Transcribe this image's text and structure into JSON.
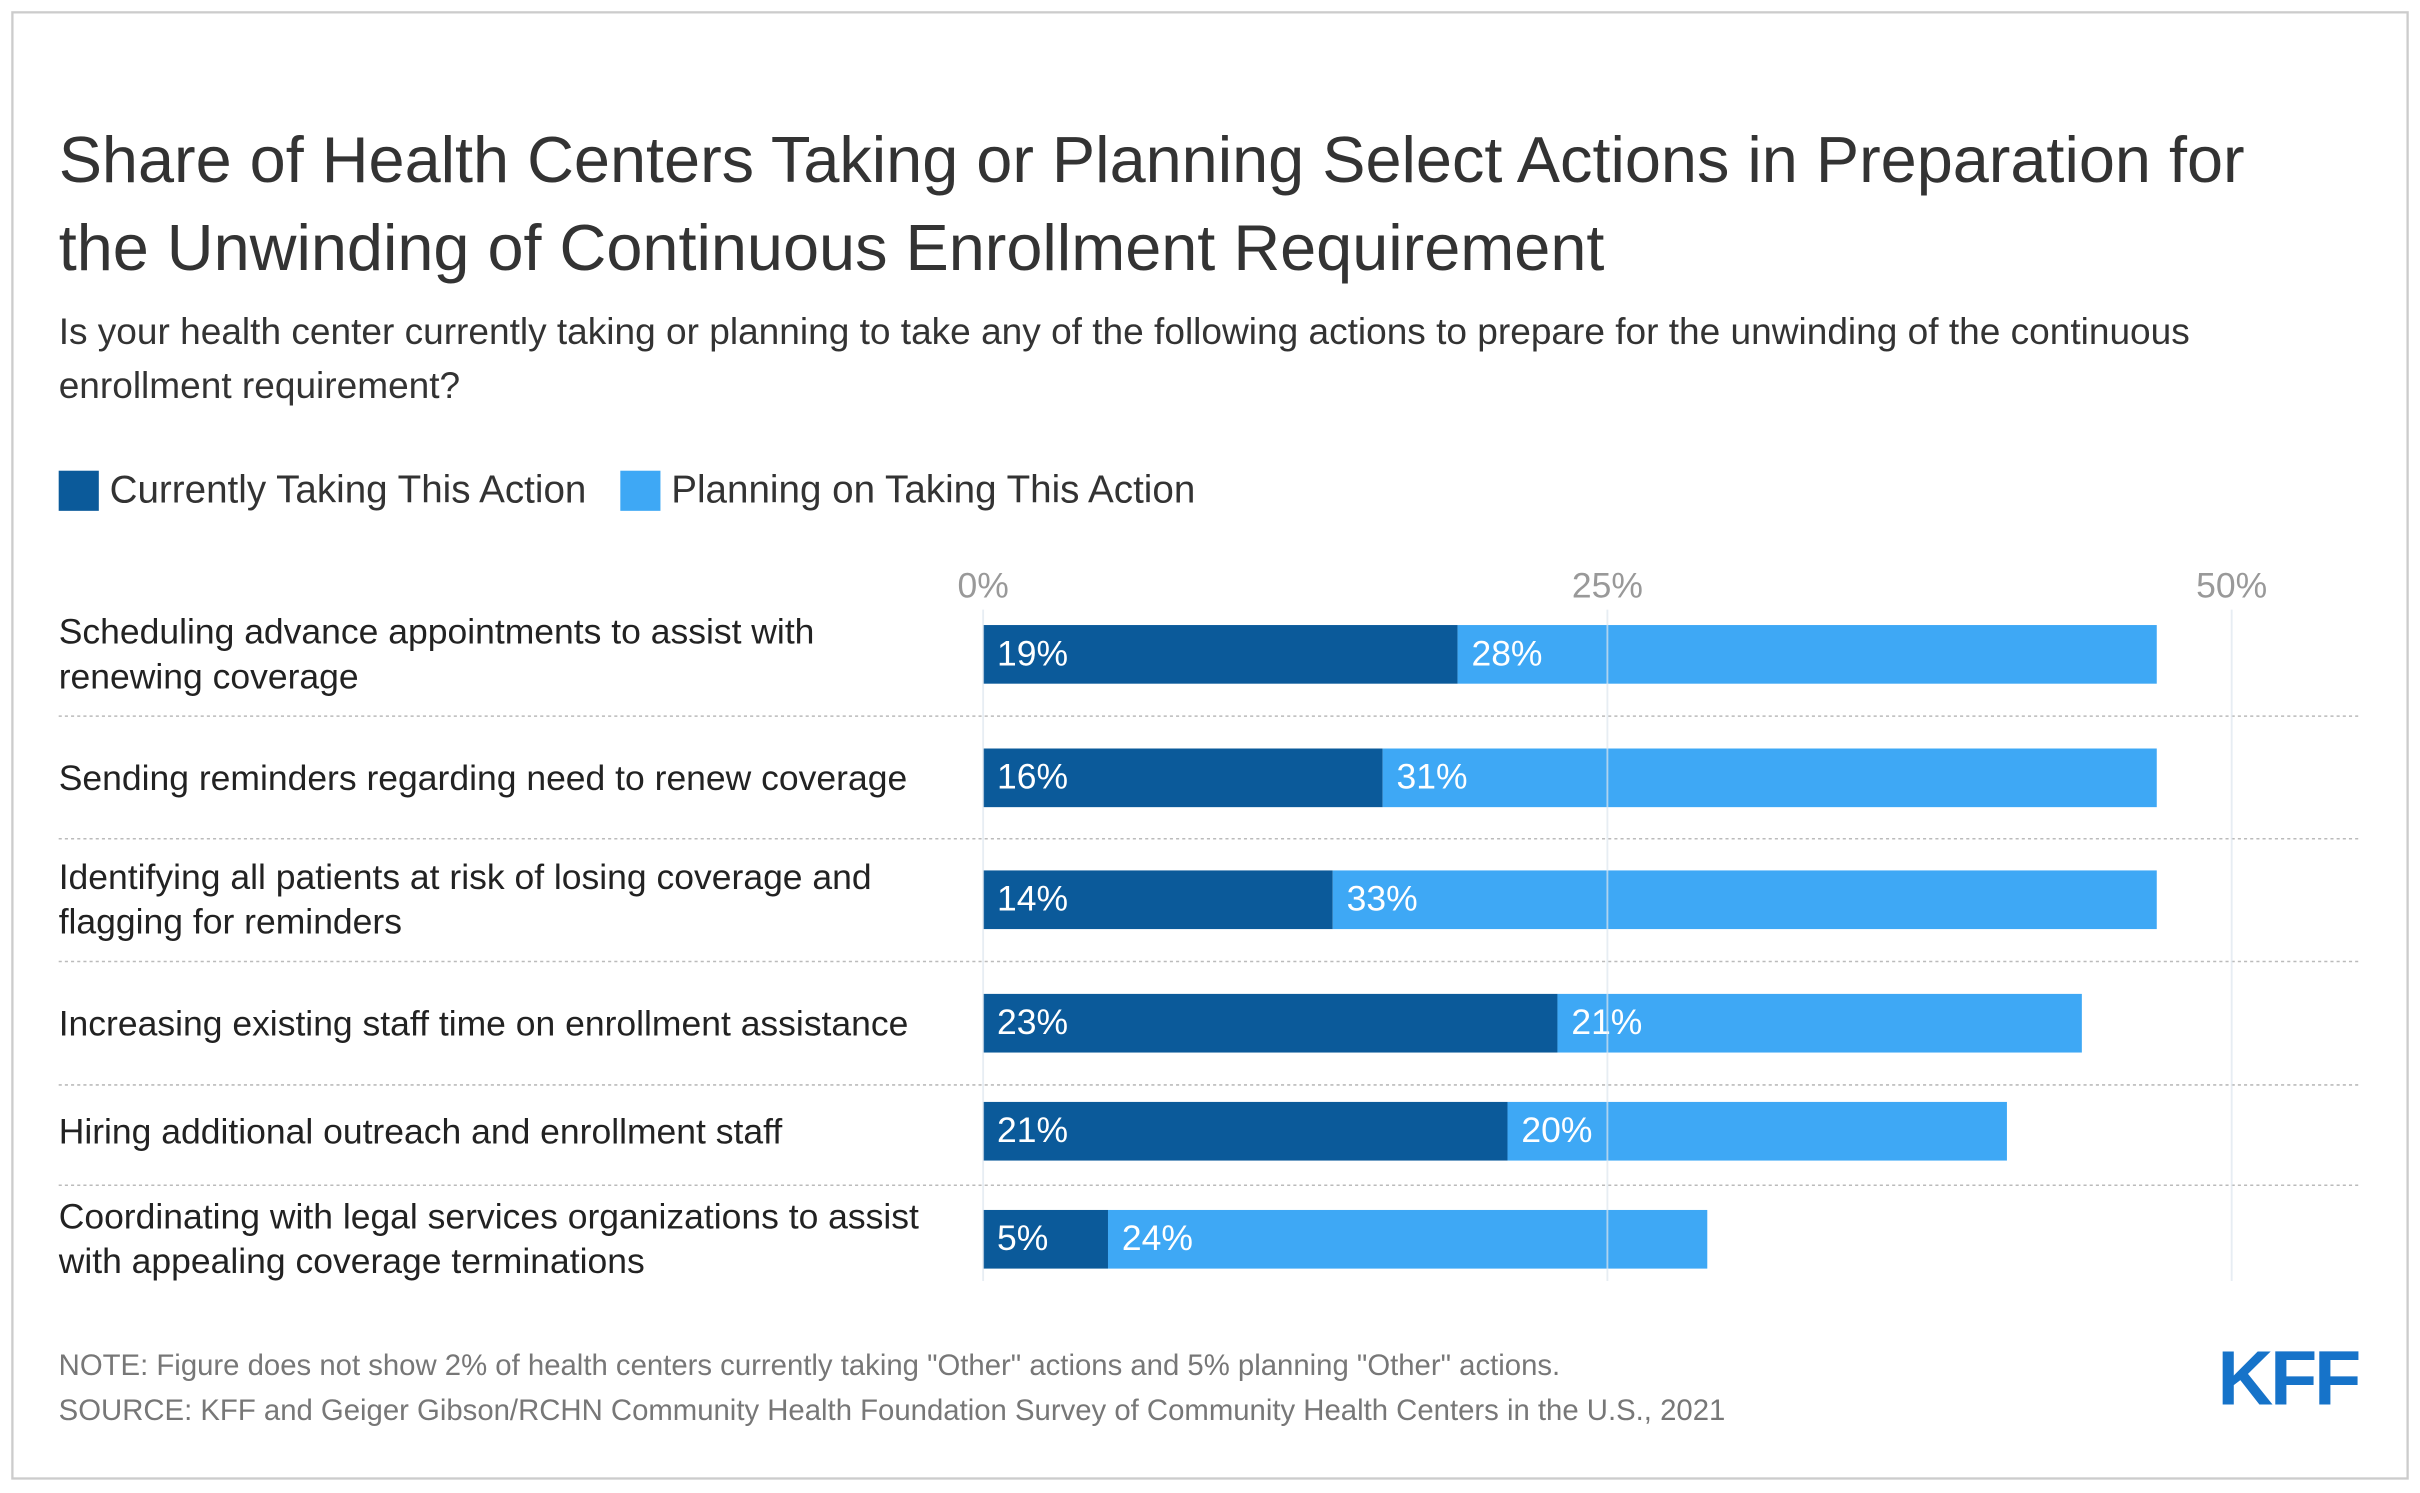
{
  "chart_data": {
    "type": "stacked-barh",
    "title": "Share of Health Centers Taking or Planning Select Actions in Preparation for the Unwinding of Continuous Enrollment Requirement",
    "subtitle": "Is your health center currently taking or planning to take any of the following actions to prepare for the unwinding of the continuous enrollment requirement?",
    "categories": [
      "Scheduling advance appointments to assist with renewing coverage",
      "Sending reminders regarding need to renew coverage",
      "Identifying all patients at risk of losing coverage and flagging for reminders",
      "Increasing existing staff time on enrollment assistance",
      "Hiring additional outreach and enrollment staff",
      "Coordinating with legal services organizations to assist with appealing coverage terminations"
    ],
    "series": [
      {
        "name": "Currently Taking This Action",
        "color": "#0b5a9a",
        "values": [
          19,
          16,
          14,
          23,
          21,
          5
        ],
        "value_labels": [
          "19%",
          "16%",
          "14%",
          "23%",
          "21%",
          "5%"
        ]
      },
      {
        "name": "Planning on Taking This Action",
        "color": "#3ea8f5",
        "values": [
          28,
          31,
          33,
          21,
          20,
          24
        ],
        "value_labels": [
          "28%",
          "31%",
          "33%",
          "21%",
          "20%",
          "24%"
        ]
      }
    ],
    "xlim": [
      0,
      50
    ],
    "xticks": [
      {
        "value": 0,
        "label": "0%"
      },
      {
        "value": 25,
        "label": "25%"
      },
      {
        "value": 50,
        "label": "50%"
      }
    ],
    "grid": true,
    "legend": "top-left",
    "note": "NOTE: Figure does not show 2% of health centers currently taking \"Other\" actions and 5% planning \"Other\" actions.",
    "source": "SOURCE: KFF and Geiger Gibson/RCHN Community Health Foundation Survey of Community Health Centers in the U.S., 2021",
    "logo": "KFF"
  }
}
